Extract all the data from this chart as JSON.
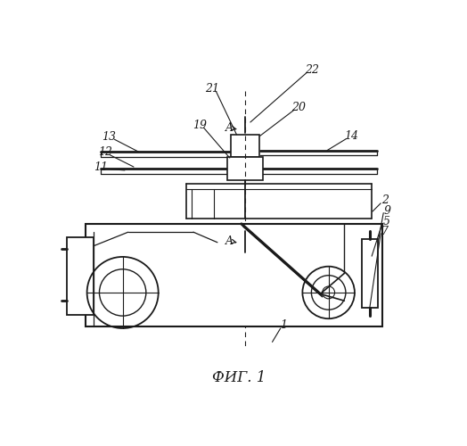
{
  "bg": "#ffffff",
  "lc": "#1a1a1a",
  "title": "ФИГ. 1",
  "fig_w": 5.24,
  "fig_h": 5.0,
  "dpi": 100
}
